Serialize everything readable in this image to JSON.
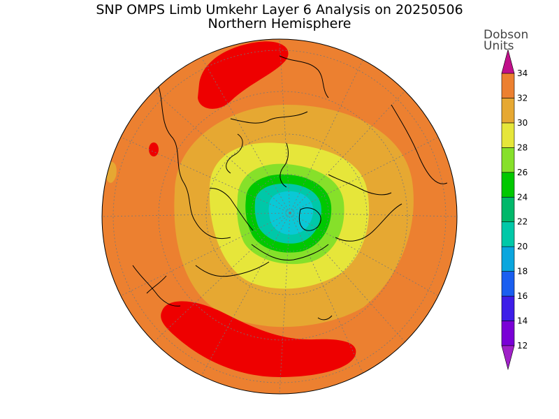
{
  "title": {
    "line1": "SNP OMPS Limb Umkehr Layer 6 Analysis on 20250506",
    "line2": "Northern Hemisphere"
  },
  "colorbar": {
    "units_line1": "Dobson",
    "units_line2": "Units",
    "levels": [
      12,
      14,
      16,
      18,
      20,
      22,
      24,
      26,
      28,
      30,
      32,
      34
    ],
    "colors": [
      "#7a00d6",
      "#3d1de8",
      "#1a5ef0",
      "#0aa6de",
      "#00c8a8",
      "#00b86a",
      "#00c800",
      "#86e02a",
      "#e6e63a",
      "#e6a832",
      "#ec8030",
      "#ee0000"
    ],
    "under_color": "#a020c8",
    "over_color": "#c0108a"
  },
  "map": {
    "projection": "north-polar-stereographic",
    "hemisphere": "Northern Hemisphere",
    "background_color": "#ec8030"
  }
}
